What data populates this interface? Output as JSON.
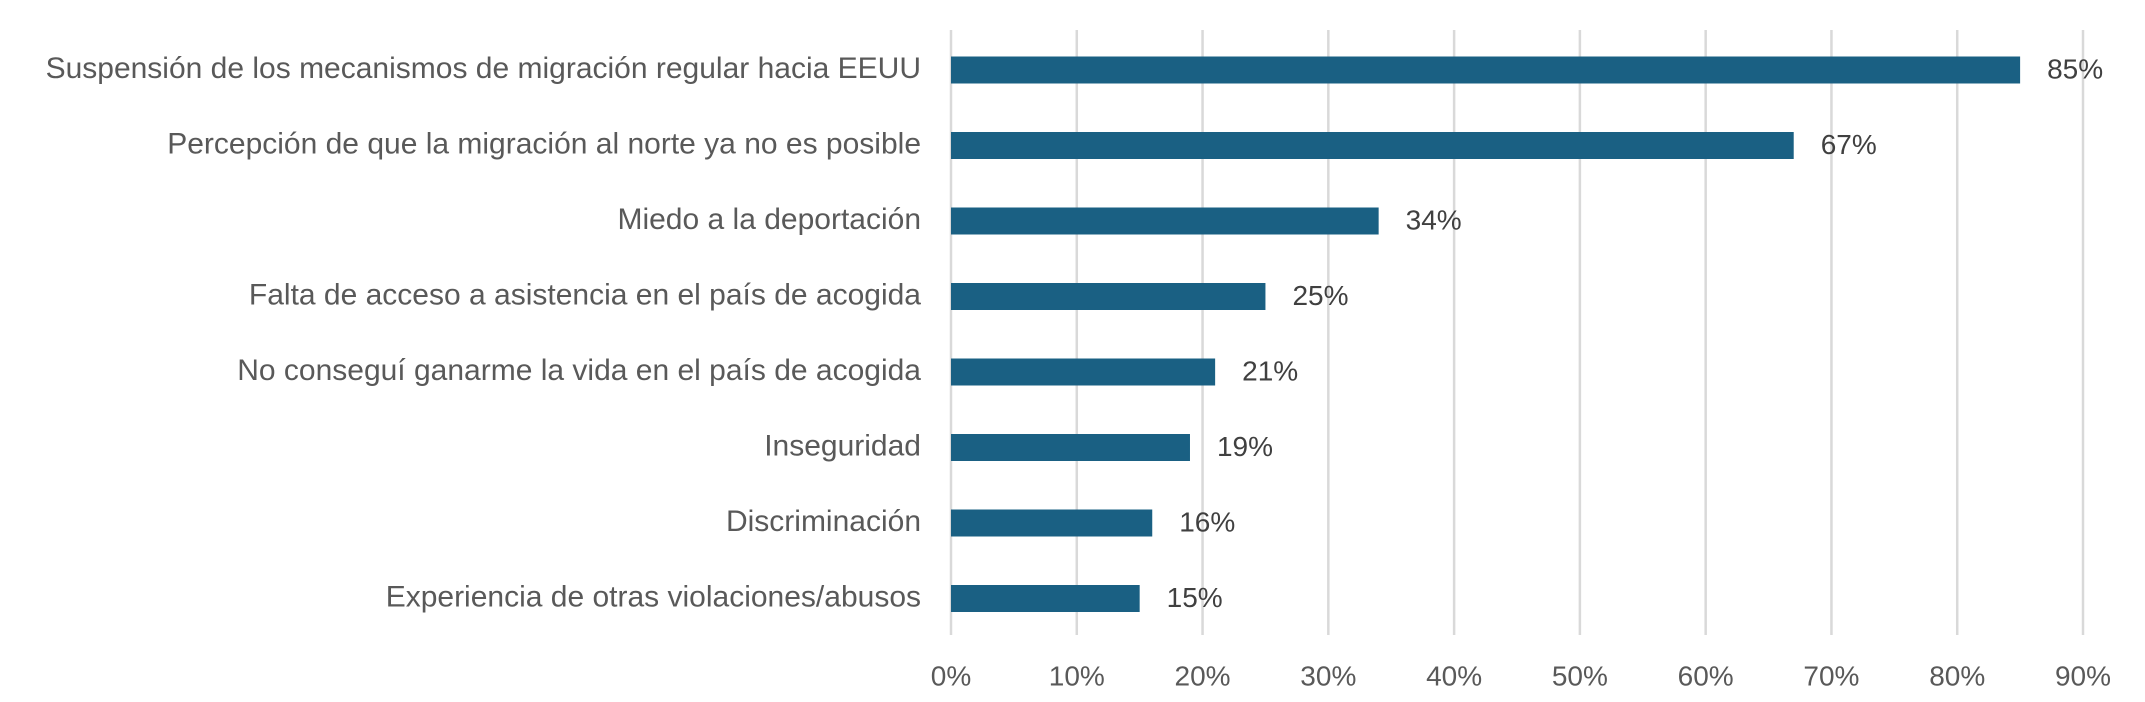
{
  "chart_data": {
    "type": "bar",
    "orientation": "horizontal",
    "categories": [
      "Suspensión de los mecanismos de migración regular hacia EEUU",
      "Percepción de que la migración al norte ya no es posible",
      "Miedo a la deportación",
      "Falta de acceso a asistencia en el país de acogida",
      "No conseguí ganarme la vida en el país de acogida",
      "Inseguridad",
      "Discriminación",
      "Experiencia de otras violaciones/abusos"
    ],
    "values": [
      0.85,
      0.67,
      0.34,
      0.25,
      0.21,
      0.19,
      0.16,
      0.15
    ],
    "value_labels": [
      "85%",
      "67%",
      "34%",
      "25%",
      "21%",
      "19%",
      "16%",
      "15%"
    ],
    "xlim": [
      0,
      0.9
    ],
    "xticks": [
      0,
      0.1,
      0.2,
      0.3,
      0.4,
      0.5,
      0.6,
      0.7,
      0.8,
      0.9
    ],
    "xtick_labels": [
      "0%",
      "10%",
      "20%",
      "30%",
      "40%",
      "50%",
      "60%",
      "70%",
      "80%",
      "90%"
    ],
    "grid": "vertical",
    "legend": "none",
    "title": "",
    "xlabel": "",
    "ylabel": "",
    "colors": {
      "bar": "#1a6083",
      "grid": "#d9d9d9",
      "axis_text": "#595959",
      "value_text": "#404040"
    }
  }
}
